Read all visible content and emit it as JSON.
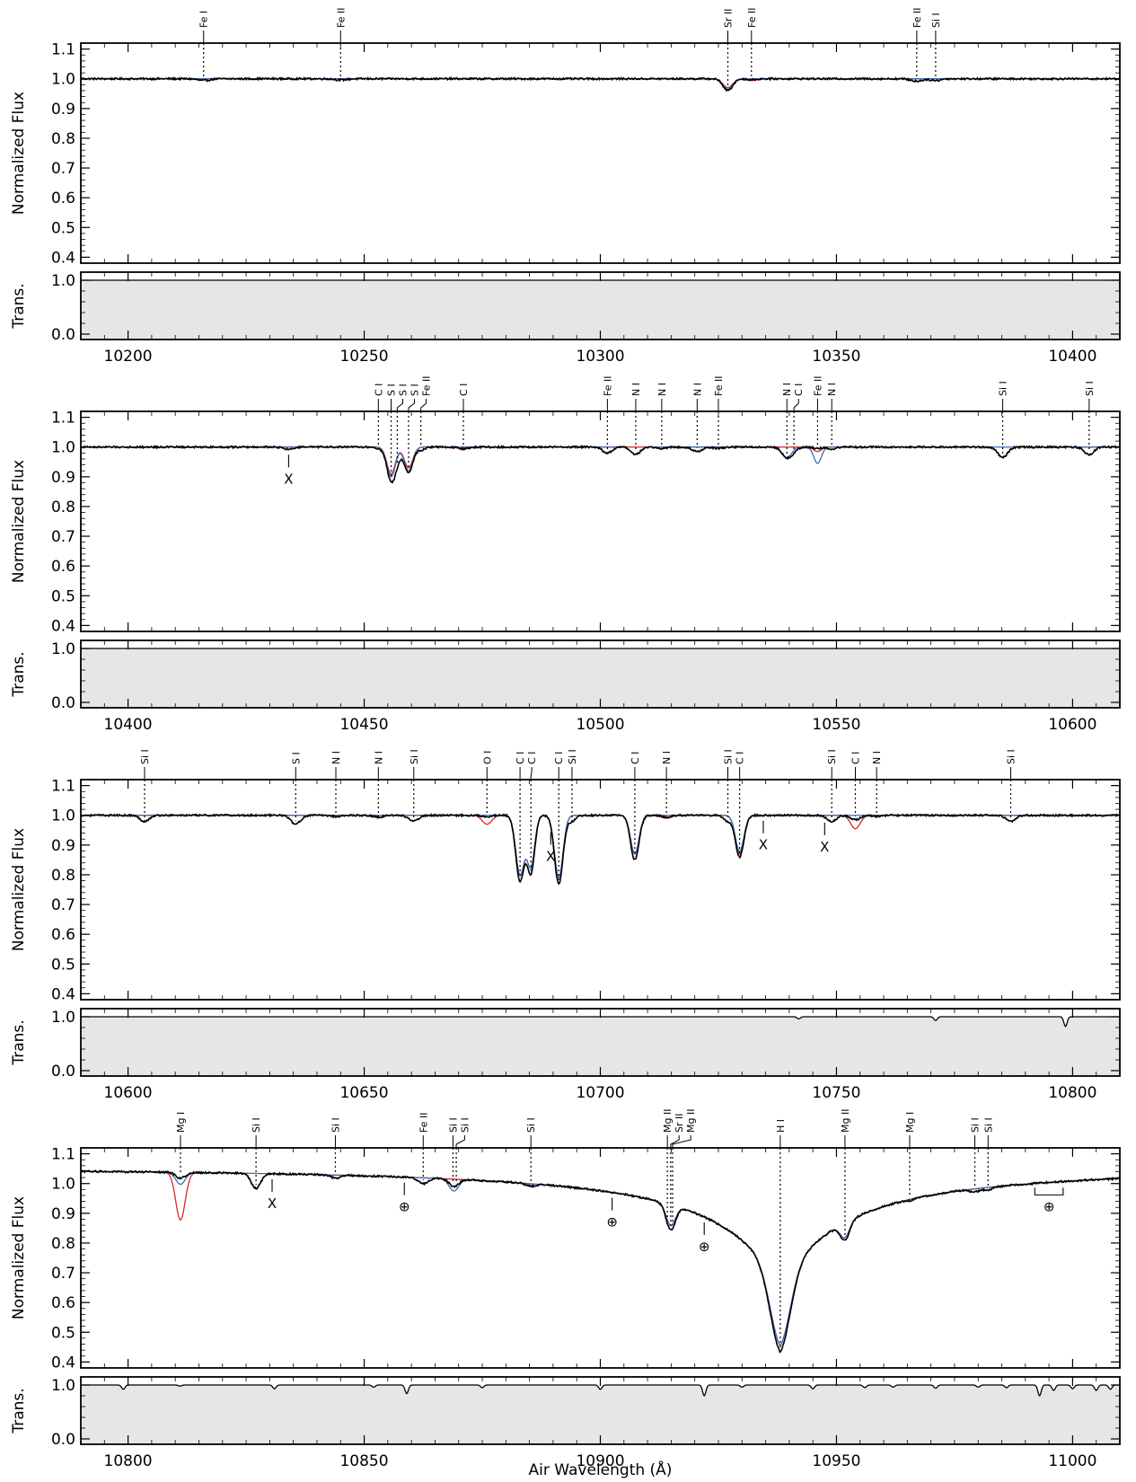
{
  "figure": {
    "xlabel": "Air Wavelength (Å)",
    "ylabel_flux": "Normalized Flux",
    "ylabel_trans": "Trans.",
    "colors": {
      "observed": "#000000",
      "model_red": "#d62728",
      "model_blue": "#3b6fb6",
      "telluric_fill": "#e6e6e6"
    }
  },
  "chart_data": [
    {
      "type": "line",
      "panel": 1,
      "xlim": [
        10190,
        10410
      ],
      "ylim_flux": [
        0.38,
        1.12
      ],
      "ylim_trans": [
        -0.1,
        1.15
      ],
      "xticks": [
        10200,
        10250,
        10300,
        10350,
        10400
      ],
      "yticks_flux": [
        0.4,
        0.5,
        0.6,
        0.7,
        0.8,
        0.9,
        1.0,
        1.1
      ],
      "yticks_trans": [
        0.0,
        1.0
      ],
      "continuum_curvature": 0,
      "features": [
        {
          "x": 10216,
          "depth": 0.006,
          "width": 1.2
        },
        {
          "x": 10245,
          "depth": 0.004,
          "width": 1.2
        },
        {
          "x": 10327,
          "depth": 0.04,
          "width": 1.0,
          "red": 0.03,
          "blue": 0.035
        },
        {
          "x": 10332,
          "depth": 0.003,
          "width": 1.0,
          "red": 0.006
        },
        {
          "x": 10367,
          "depth": 0.008,
          "width": 1.2
        },
        {
          "x": 10371,
          "depth": 0.006,
          "width": 1.0
        }
      ],
      "telluric": [],
      "line_labels": [
        {
          "x": 10216,
          "label": "Fe I"
        },
        {
          "x": 10245,
          "label": "Fe II"
        },
        {
          "x": 10327,
          "label": "Sr II"
        },
        {
          "x": 10332,
          "label": "Fe II"
        },
        {
          "x": 10367,
          "label": "Fe II"
        },
        {
          "x": 10371,
          "label": "Si I"
        }
      ],
      "markers": []
    },
    {
      "type": "line",
      "panel": 2,
      "xlim": [
        10390,
        10610
      ],
      "ylim_flux": [
        0.38,
        1.12
      ],
      "ylim_trans": [
        -0.1,
        1.15
      ],
      "xticks": [
        10400,
        10450,
        10500,
        10550,
        10600
      ],
      "yticks_flux": [
        0.4,
        0.5,
        0.6,
        0.7,
        0.8,
        0.9,
        1.0,
        1.1
      ],
      "yticks_trans": [
        0.0,
        1.0
      ],
      "continuum_curvature": 0,
      "features": [
        {
          "x": 10434,
          "depth": 0.008,
          "width": 1.0
        },
        {
          "x": 10453,
          "depth": 0.005,
          "width": 0.8
        },
        {
          "x": 10455.7,
          "depth": 0.11,
          "width": 0.9,
          "red": 0.09,
          "blue": 0.1
        },
        {
          "x": 10457,
          "depth": 0.03,
          "width": 0.8
        },
        {
          "x": 10459.4,
          "depth": 0.085,
          "width": 0.9,
          "red": 0.07,
          "blue": 0.08
        },
        {
          "x": 10462,
          "depth": 0.01,
          "width": 0.8
        },
        {
          "x": 10471,
          "depth": 0.006,
          "width": 1.0,
          "red": 0.008
        },
        {
          "x": 10501.5,
          "depth": 0.02,
          "width": 1.0
        },
        {
          "x": 10507.5,
          "depth": 0.025,
          "width": 1.0,
          "blue": 0.025
        },
        {
          "x": 10513,
          "depth": 0.005,
          "width": 1.0
        },
        {
          "x": 10520.5,
          "depth": 0.015,
          "width": 1.0
        },
        {
          "x": 10525,
          "depth": 0.005,
          "width": 1.0
        },
        {
          "x": 10539.5,
          "depth": 0.035,
          "width": 1.0,
          "blue": 0.035
        },
        {
          "x": 10541,
          "depth": 0.01,
          "width": 0.8
        },
        {
          "x": 10546,
          "depth": 0.005,
          "width": 0.8,
          "red": 0.015,
          "blue": 0.055
        },
        {
          "x": 10549,
          "depth": 0.008,
          "width": 0.8
        },
        {
          "x": 10585.2,
          "depth": 0.035,
          "width": 1.0,
          "red": 0.035
        },
        {
          "x": 10603.5,
          "depth": 0.025,
          "width": 1.0
        }
      ],
      "telluric": [],
      "line_labels": [
        {
          "x": 10453,
          "label": "C I"
        },
        {
          "x": 10455.7,
          "label": "S I"
        },
        {
          "x": 10457,
          "label": "S I"
        },
        {
          "x": 10459.4,
          "label": "S I"
        },
        {
          "x": 10462,
          "label": "Fe II"
        },
        {
          "x": 10471,
          "label": "C I"
        },
        {
          "x": 10501.5,
          "label": "Fe II"
        },
        {
          "x": 10507.5,
          "label": "N I"
        },
        {
          "x": 10513,
          "label": "N I"
        },
        {
          "x": 10520.5,
          "label": "N I"
        },
        {
          "x": 10525,
          "label": "Fe II"
        },
        {
          "x": 10539.5,
          "label": "N I"
        },
        {
          "x": 10541,
          "label": "C I"
        },
        {
          "x": 10546,
          "label": "Fe II"
        },
        {
          "x": 10549,
          "label": "N I"
        },
        {
          "x": 10585.2,
          "label": "Si I"
        },
        {
          "x": 10603.5,
          "label": "Si I"
        }
      ],
      "markers": [
        {
          "x": 10434,
          "label": "X",
          "y": 0.9
        }
      ]
    },
    {
      "type": "line",
      "panel": 3,
      "xlim": [
        10590,
        10810
      ],
      "ylim_flux": [
        0.38,
        1.12
      ],
      "ylim_trans": [
        -0.1,
        1.15
      ],
      "xticks": [
        10600,
        10650,
        10700,
        10750,
        10800
      ],
      "yticks_flux": [
        0.4,
        0.5,
        0.6,
        0.7,
        0.8,
        0.9,
        1.0,
        1.1
      ],
      "yticks_trans": [
        0.0,
        1.0
      ],
      "continuum_curvature": 0,
      "features": [
        {
          "x": 10603.5,
          "depth": 0.02,
          "width": 1.0
        },
        {
          "x": 10635.5,
          "depth": 0.03,
          "width": 1.0
        },
        {
          "x": 10644,
          "depth": 0.004,
          "width": 1.0
        },
        {
          "x": 10653,
          "depth": 0.006,
          "width": 1.0,
          "red": 0.008
        },
        {
          "x": 10660.5,
          "depth": 0.02,
          "width": 1.0
        },
        {
          "x": 10676,
          "depth": 0.004,
          "width": 1.0,
          "red": 0.03
        },
        {
          "x": 10683,
          "depth": 0.22,
          "width": 0.9,
          "red": 0.2,
          "blue": 0.2
        },
        {
          "x": 10685.3,
          "depth": 0.19,
          "width": 0.8,
          "red": 0.17,
          "blue": 0.17
        },
        {
          "x": 10691.2,
          "depth": 0.23,
          "width": 0.9,
          "red": 0.21,
          "blue": 0.21
        },
        {
          "x": 10694,
          "depth": 0.02,
          "width": 0.8
        },
        {
          "x": 10707.3,
          "depth": 0.15,
          "width": 0.9,
          "red": 0.13,
          "blue": 0.13
        },
        {
          "x": 10714,
          "depth": 0.006,
          "width": 1.0,
          "red": 0.01
        },
        {
          "x": 10727,
          "depth": 0.02,
          "width": 0.8
        },
        {
          "x": 10729.5,
          "depth": 0.14,
          "width": 0.9,
          "red": 0.13,
          "blue": 0.12
        },
        {
          "x": 10749,
          "depth": 0.02,
          "width": 1.0
        },
        {
          "x": 10754,
          "depth": 0.015,
          "width": 1.0,
          "red": 0.045
        },
        {
          "x": 10758.5,
          "depth": 0.004,
          "width": 1.0
        },
        {
          "x": 10786.9,
          "depth": 0.02,
          "width": 1.0
        }
      ],
      "telluric": [
        {
          "x": 10742,
          "depth": 0.04
        },
        {
          "x": 10771,
          "depth": 0.07
        },
        {
          "x": 10798.5,
          "depth": 0.18
        }
      ],
      "line_labels": [
        {
          "x": 10603.5,
          "label": "Si I"
        },
        {
          "x": 10635.5,
          "label": "S I"
        },
        {
          "x": 10644,
          "label": "N I"
        },
        {
          "x": 10653,
          "label": "N I"
        },
        {
          "x": 10660.5,
          "label": "Si I"
        },
        {
          "x": 10676,
          "label": "O I"
        },
        {
          "x": 10683,
          "label": "C I"
        },
        {
          "x": 10685.3,
          "label": "C I"
        },
        {
          "x": 10691.2,
          "label": "C I"
        },
        {
          "x": 10694,
          "label": "Si I"
        },
        {
          "x": 10707.3,
          "label": "C I"
        },
        {
          "x": 10714,
          "label": "N I"
        },
        {
          "x": 10727,
          "label": "Si I"
        },
        {
          "x": 10729.5,
          "label": "C I"
        },
        {
          "x": 10749,
          "label": "Si I"
        },
        {
          "x": 10754,
          "label": "C I"
        },
        {
          "x": 10758.5,
          "label": "N I"
        },
        {
          "x": 10786.9,
          "label": "Si I"
        }
      ],
      "markers": [
        {
          "x": 10689.5,
          "label": "X",
          "y": 0.9
        },
        {
          "x": 10734.5,
          "label": "X",
          "y": 0.91
        },
        {
          "x": 10747.5,
          "label": "X",
          "y": 0.91
        }
      ]
    },
    {
      "type": "line",
      "panel": 4,
      "xlim": [
        10790,
        11010
      ],
      "ylim_flux": [
        0.38,
        1.12
      ],
      "ylim_trans": [
        -0.1,
        1.15
      ],
      "xticks": [
        10800,
        10850,
        10900,
        10950,
        11000
      ],
      "yticks_flux": [
        0.4,
        0.5,
        0.6,
        0.7,
        0.8,
        0.9,
        1.0,
        1.1
      ],
      "yticks_trans": [
        0.0,
        1.0
      ],
      "continuum_curvature": 1,
      "hydrogen": {
        "x": 10938.1,
        "core_depth": 0.43,
        "model_depth": 0.41,
        "core_width": 2.2,
        "wing_scale": 0.0035,
        "wing_width": 18
      },
      "features": [
        {
          "x": 10811.1,
          "depth": 0.02,
          "width": 1.0,
          "red": 0.16,
          "blue": 0.04
        },
        {
          "x": 10827.1,
          "depth": 0.05,
          "width": 1.0,
          "red": 0.05
        },
        {
          "x": 10843.9,
          "depth": 0.01,
          "width": 1.0
        },
        {
          "x": 10862.5,
          "depth": 0.02,
          "width": 1.0
        },
        {
          "x": 10869,
          "depth": 0.025,
          "width": 1.0,
          "blue": 0.04
        },
        {
          "x": 10885.3,
          "depth": 0.008,
          "width": 1.0,
          "red": 0.01
        },
        {
          "x": 10914.9,
          "depth": 0.085,
          "width": 1.0,
          "red": 0.07,
          "blue": 0.07
        },
        {
          "x": 10951.8,
          "depth": 0.06,
          "width": 1.0,
          "red": 0.05,
          "blue": 0.05
        },
        {
          "x": 10965.5,
          "depth": 0.004,
          "width": 1.0
        },
        {
          "x": 10979.3,
          "depth": 0.01,
          "width": 1.0
        },
        {
          "x": 10982.1,
          "depth": 0.008,
          "width": 1.0
        }
      ],
      "telluric": [
        {
          "x": 10799,
          "depth": 0.08
        },
        {
          "x": 10811,
          "depth": 0.02
        },
        {
          "x": 10831,
          "depth": 0.07
        },
        {
          "x": 10852,
          "depth": 0.04
        },
        {
          "x": 10859,
          "depth": 0.16
        },
        {
          "x": 10875,
          "depth": 0.05
        },
        {
          "x": 10900,
          "depth": 0.08
        },
        {
          "x": 10922,
          "depth": 0.2
        },
        {
          "x": 10930,
          "depth": 0.04
        },
        {
          "x": 10945,
          "depth": 0.07
        },
        {
          "x": 10956,
          "depth": 0.05
        },
        {
          "x": 10962,
          "depth": 0.04
        },
        {
          "x": 10971,
          "depth": 0.06
        },
        {
          "x": 10980,
          "depth": 0.04
        },
        {
          "x": 10986,
          "depth": 0.05
        },
        {
          "x": 10993,
          "depth": 0.2
        },
        {
          "x": 10996,
          "depth": 0.1
        },
        {
          "x": 11000,
          "depth": 0.07
        },
        {
          "x": 11005,
          "depth": 0.1
        },
        {
          "x": 11008,
          "depth": 0.08
        }
      ],
      "line_labels": [
        {
          "x": 10811.1,
          "label": "Mg I"
        },
        {
          "x": 10827.1,
          "label": "Si I"
        },
        {
          "x": 10843.9,
          "label": "Si I"
        },
        {
          "x": 10862.5,
          "label": "Fe II"
        },
        {
          "x": 10868.8,
          "label": "Si I"
        },
        {
          "x": 10869.5,
          "label": "Si I"
        },
        {
          "x": 10885.3,
          "label": "Si I"
        },
        {
          "x": 10914.2,
          "label": "Mg II"
        },
        {
          "x": 10914.9,
          "label": "Sr II"
        },
        {
          "x": 10915.3,
          "label": "Mg II"
        },
        {
          "x": 10938.1,
          "label": "H I"
        },
        {
          "x": 10951.8,
          "label": "Mg II"
        },
        {
          "x": 10965.5,
          "label": "Mg I"
        },
        {
          "x": 10979.3,
          "label": "Si I"
        },
        {
          "x": 10982.1,
          "label": "Si I"
        }
      ],
      "markers": [
        {
          "x": 10830.5,
          "label": "X",
          "y": 0.93
        },
        {
          "x": 10858.5,
          "label": "⊕",
          "y": 0.93
        },
        {
          "x": 10902.5,
          "label": "⊕",
          "y": 0.88
        },
        {
          "x": 10922,
          "label": "⊕",
          "y": 0.785
        }
      ],
      "bracket_markers": [
        {
          "x1": 10992,
          "x2": 10998,
          "label": "⊕",
          "y": 0.955
        }
      ]
    }
  ]
}
